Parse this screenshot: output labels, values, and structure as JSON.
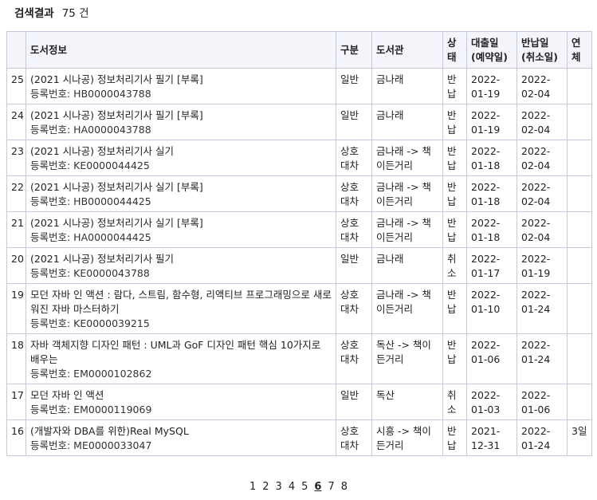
{
  "search": {
    "title": "검색결과",
    "count": "75 건"
  },
  "columns": {
    "no": "",
    "info": "도서정보",
    "type": "구분",
    "library": "도서관",
    "status": "상태",
    "loan": "대출일\n(예약일)",
    "return": "반납일\n(취소일)",
    "overdue": "연체"
  },
  "rows": [
    {
      "no": "25",
      "title": "(2021 시나공) 정보처리기사 필기 [부록]",
      "regno": "등록번호: HB0000043788",
      "type": "일반",
      "library": "금나래",
      "status": "반납",
      "loan": "2022-01-19",
      "ret": "2022-02-04",
      "overdue": ""
    },
    {
      "no": "24",
      "title": "(2021 시나공) 정보처리기사 필기 [부록]",
      "regno": "등록번호: HA0000043788",
      "type": "일반",
      "library": "금나래",
      "status": "반납",
      "loan": "2022-01-19",
      "ret": "2022-02-04",
      "overdue": ""
    },
    {
      "no": "23",
      "title": "(2021 시나공) 정보처리기사 실기",
      "regno": "등록번호: KE0000044425",
      "type": "상호대차",
      "library": "금나래 -> 책이든거리",
      "status": "반납",
      "loan": "2022-01-18",
      "ret": "2022-02-04",
      "overdue": ""
    },
    {
      "no": "22",
      "title": "(2021 시나공) 정보처리기사 실기 [부록]",
      "regno": "등록번호: HB0000044425",
      "type": "상호대차",
      "library": "금나래 -> 책이든거리",
      "status": "반납",
      "loan": "2022-01-18",
      "ret": "2022-02-04",
      "overdue": ""
    },
    {
      "no": "21",
      "title": "(2021 시나공) 정보처리기사 실기 [부록]",
      "regno": "등록번호: HA0000044425",
      "type": "상호대차",
      "library": "금나래 -> 책이든거리",
      "status": "반납",
      "loan": "2022-01-18",
      "ret": "2022-02-04",
      "overdue": ""
    },
    {
      "no": "20",
      "title": "(2021 시나공) 정보처리기사 필기",
      "regno": "등록번호: KE0000043788",
      "type": "일반",
      "library": "금나래",
      "status": "취소",
      "loan": "2022-01-17",
      "ret": "2022-01-19",
      "overdue": ""
    },
    {
      "no": "19",
      "title": "모던 자바 인 액션 : 람다, 스트림, 함수형, 리액티브 프로그래밍으로 새로워진 자바 마스터하기",
      "regno": "등록번호: KE0000039215",
      "type": "상호대차",
      "library": "금나래 -> 책이든거리",
      "status": "반납",
      "loan": "2022-01-10",
      "ret": "2022-01-24",
      "overdue": ""
    },
    {
      "no": "18",
      "title": "자바 객체지향 디자인 패턴 : UML과 GoF 디자인 패턴 핵심 10가지로 배우는",
      "regno": "등록번호: EM0000102862",
      "type": "상호대차",
      "library": "독산 -> 책이든거리",
      "status": "반납",
      "loan": "2022-01-06",
      "ret": "2022-01-24",
      "overdue": ""
    },
    {
      "no": "17",
      "title": "모던 자바 인 액션",
      "regno": "등록번호: EM0000119069",
      "type": "일반",
      "library": "독산",
      "status": "취소",
      "loan": "2022-01-03",
      "ret": "2022-01-06",
      "overdue": ""
    },
    {
      "no": "16",
      "title": "(개발자와 DBA를 위한)Real MySQL",
      "regno": "등록번호: ME0000033047",
      "type": "상호대차",
      "library": "시흥 -> 책이든거리",
      "status": "반납",
      "loan": "2021-12-31",
      "ret": "2022-01-24",
      "overdue": "3일"
    }
  ],
  "pagination": {
    "pages": [
      "1",
      "2",
      "3",
      "4",
      "5",
      "6",
      "7",
      "8"
    ],
    "current": "6"
  }
}
